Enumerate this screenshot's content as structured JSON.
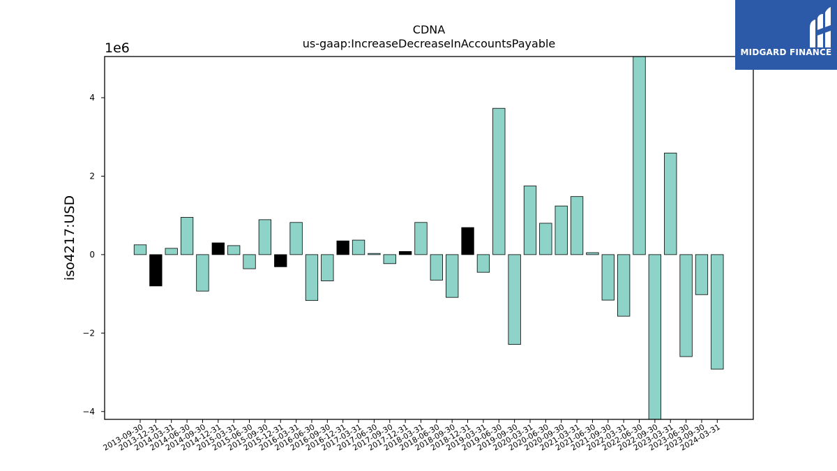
{
  "chart_data": {
    "type": "bar",
    "title": "CDNA",
    "subtitle": "us-gaap:IncreaseDecreaseInAccountsPayable",
    "xlabel": "",
    "ylabel": "iso4217:USD",
    "y_multiplier_label": "1e6",
    "ylim": [
      -4.2,
      5.05
    ],
    "yticks": [
      -4,
      -2,
      0,
      2,
      4
    ],
    "ytick_labels": [
      "−4",
      "−2",
      "0",
      "2",
      "4"
    ],
    "grid": false,
    "colors": {
      "default": "#8dd3c7",
      "highlight": "#000000",
      "edge": "#000000"
    },
    "categories": [
      "2013-09-30",
      "2013-12-31",
      "2014-03-31",
      "2014-06-30",
      "2014-09-30",
      "2014-12-31",
      "2015-03-31",
      "2015-06-30",
      "2015-09-30",
      "2015-12-31",
      "2016-03-31",
      "2016-06-30",
      "2016-09-30",
      "2016-12-31",
      "2017-03-31",
      "2017-06-30",
      "2017-09-30",
      "2017-12-31",
      "2018-03-31",
      "2018-06-30",
      "2018-09-30",
      "2018-12-31",
      "2019-03-31",
      "2019-06-30",
      "2019-09-30",
      "2020-03-31",
      "2020-06-30",
      "2020-09-30",
      "2021-03-31",
      "2021-06-30",
      "2021-09-30",
      "2022-03-31",
      "2022-06-30",
      "2022-09-30",
      "2023-03-31",
      "2023-06-30",
      "2023-09-30",
      "2024-03-31"
    ],
    "values": [
      0.25,
      -0.8,
      0.16,
      0.95,
      -0.93,
      0.3,
      0.23,
      -0.36,
      0.89,
      -0.31,
      0.82,
      -1.17,
      -0.67,
      0.35,
      0.37,
      0.03,
      -0.23,
      0.08,
      0.82,
      -0.65,
      -1.09,
      0.69,
      -0.45,
      3.73,
      -2.29,
      1.75,
      0.8,
      1.24,
      1.48,
      0.05,
      -1.16,
      -1.57,
      5.05,
      -4.2,
      2.59,
      -2.6,
      -1.02,
      -2.92
    ],
    "highlighted": [
      false,
      true,
      false,
      false,
      false,
      true,
      false,
      false,
      false,
      true,
      false,
      false,
      false,
      true,
      false,
      false,
      false,
      true,
      false,
      false,
      false,
      true,
      false,
      false,
      false,
      false,
      false,
      false,
      false,
      false,
      false,
      false,
      false,
      false,
      false,
      false,
      false,
      false
    ]
  },
  "logo": {
    "text": "MIDGARD FINANCE",
    "background": "#2d5aa8",
    "icon": "midgard-logo-icon"
  }
}
